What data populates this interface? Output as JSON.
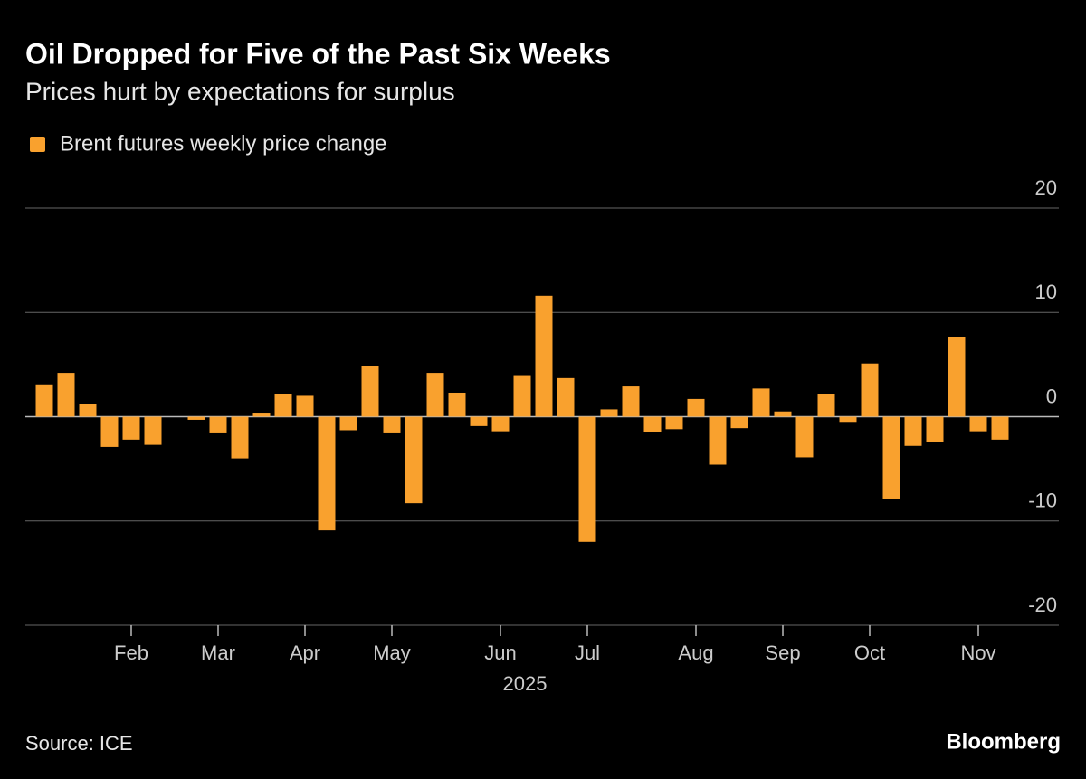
{
  "chart_data": {
    "type": "bar",
    "title": "Oil Dropped for Five of the Past Six Weeks",
    "subtitle": "Prices hurt by expectations for surplus",
    "source": "Source: ICE",
    "brand": "Bloomberg",
    "xlabel": "2025",
    "categories": [
      null,
      null,
      null,
      null,
      "Feb",
      null,
      null,
      null,
      "Mar",
      null,
      null,
      null,
      "Apr",
      null,
      null,
      null,
      "May",
      null,
      null,
      null,
      null,
      "Jun",
      null,
      null,
      null,
      "Jul",
      null,
      null,
      null,
      null,
      "Aug",
      null,
      null,
      null,
      "Sep",
      null,
      null,
      null,
      "Oct",
      null,
      null,
      null,
      null,
      "Nov",
      null
    ],
    "series": [
      {
        "name": "Brent futures weekly price change",
        "color": "#f9a12e",
        "values": [
          3.1,
          4.2,
          1.2,
          -2.9,
          -2.2,
          -2.7,
          0,
          -0.3,
          -1.6,
          -4.0,
          0.3,
          2.2,
          2.0,
          -10.9,
          -1.3,
          4.9,
          -1.6,
          -8.3,
          4.2,
          2.3,
          -0.9,
          -1.4,
          3.9,
          11.6,
          3.7,
          -12.0,
          0.7,
          2.9,
          -1.5,
          -1.2,
          1.7,
          -4.6,
          -1.1,
          2.7,
          0.5,
          -3.9,
          2.2,
          -0.5,
          5.1,
          -7.9,
          -2.8,
          -2.4,
          7.6,
          -1.4,
          -2.2
        ]
      }
    ],
    "ylim": [
      -20,
      20
    ],
    "yticks": [
      -20,
      -10,
      0,
      10,
      20
    ],
    "grid": true
  }
}
